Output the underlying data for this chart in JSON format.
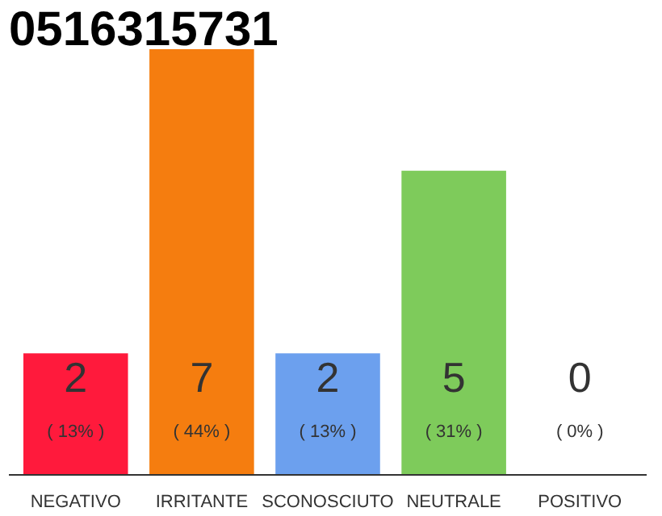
{
  "chart_data": {
    "type": "bar",
    "title": "0516315731",
    "categories": [
      "NEGATIVO",
      "IRRITANTE",
      "SCONOSCIUTO",
      "NEUTRALE",
      "POSITIVO"
    ],
    "values": [
      2,
      7,
      2,
      5,
      0
    ],
    "colors": [
      "#ff1a3c",
      "#f57d0f",
      "#6ca0ee",
      "#7ecb5b",
      "#dddddd"
    ],
    "value_labels": [
      "2\n( 13% )",
      "7\n( 44% )",
      "2\n( 13% )",
      "5\n( 31% )",
      "0\n( 0% )"
    ],
    "grid": false
  }
}
